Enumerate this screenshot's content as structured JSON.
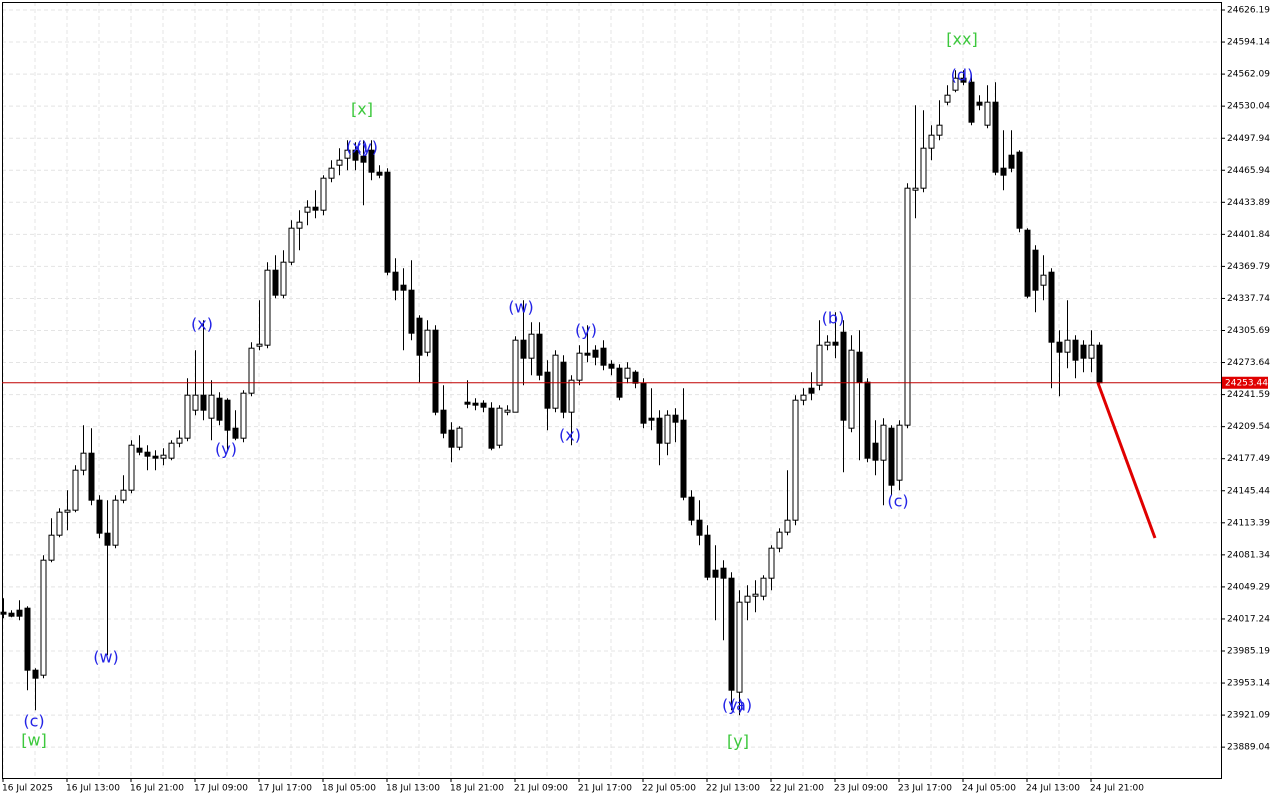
{
  "chart_data": {
    "type": "candlestick",
    "categories": [
      "16 Jul 2025",
      null,
      null,
      null,
      null,
      null,
      null,
      null,
      "16 Jul 13:00",
      null,
      null,
      null,
      null,
      null,
      null,
      null,
      "16 Jul 21:00",
      null,
      null,
      null,
      null,
      null,
      null,
      null,
      "17 Jul 09:00",
      null,
      null,
      null,
      null,
      null,
      null,
      null,
      "17 Jul 17:00",
      null,
      null,
      null,
      null,
      null,
      null,
      null,
      "18 Jul 05:00",
      null,
      null,
      null,
      null,
      null,
      null,
      null,
      "18 Jul 13:00",
      null,
      null,
      null,
      null,
      null,
      null,
      null,
      "18 Jul 21:00",
      null,
      null,
      null,
      null,
      null,
      null,
      null,
      "21 Jul 09:00",
      null,
      null,
      null,
      null,
      null,
      null,
      null,
      "21 Jul 17:00",
      null,
      null,
      null,
      null,
      null,
      null,
      null,
      "22 Jul 05:00",
      null,
      null,
      null,
      null,
      null,
      null,
      null,
      "22 Jul 13:00",
      null,
      null,
      null,
      null,
      null,
      null,
      null,
      "22 Jul 21:00",
      null,
      null,
      null,
      null,
      null,
      null,
      null,
      "23 Jul 09:00",
      null,
      null,
      null,
      null,
      null,
      null,
      null,
      "23 Jul 17:00",
      null,
      null,
      null,
      null,
      null,
      null,
      null,
      "24 Jul 05:00",
      null,
      null,
      null,
      null,
      null,
      null,
      null,
      "24 Jul 13:00",
      null,
      null,
      null,
      null,
      null,
      null,
      null,
      "24 Jul 21:00",
      null
    ],
    "open": [
      24024,
      24023,
      24026,
      24028,
      23966,
      23961,
      24076,
      24101,
      24124,
      24126,
      24166,
      24183,
      24136,
      24103,
      24091,
      24136,
      24146,
      24188,
      24184,
      24180,
      24178,
      24178,
      24193,
      24198,
      24226,
      24241,
      24218,
      24238,
      24236,
      24208,
      24198,
      24243,
      24290,
      24291,
      24366,
      24341,
      24374,
      24408,
      24424,
      24429,
      24426,
      24458,
      24471,
      24478,
      24486,
      24480,
      24486,
      24464,
      24464,
      24364,
      24351,
      24346,
      24318,
      24284,
      24306,
      24226,
      24206,
      24189,
      24234,
      24233,
      24233,
      24228,
      24191,
      24224,
      24224,
      24296,
      24278,
      24302,
      24264,
      24228,
      24274,
      24224,
      24256,
      24283,
      24286,
      24288,
      24272,
      24268,
      24258,
      24264,
      24253,
      24218,
      24218,
      24193,
      24221,
      24216,
      24139,
      24116,
      24101,
      24066,
      24068,
      24058,
      23944,
      24034,
      24040,
      24040,
      24058,
      24088,
      24104,
      24116,
      24236,
      24248,
      24251,
      24291,
      24294,
      24304,
      24208,
      24284,
      24254,
      24193,
      24176,
      24208,
      24156,
      24211,
      24446,
      24448,
      24488,
      24501,
      24534,
      24546,
      24558,
      24554,
      24534,
      24511,
      24534,
      24468,
      24481,
      24484,
      24406,
      24386,
      24351,
      24364,
      24294,
      24284,
      24296,
      24291,
      24278,
      24291
    ],
    "high": [
      24038,
      24026,
      24036,
      24030,
      23968,
      24081,
      24118,
      24128,
      24146,
      24171,
      24211,
      24208,
      24141,
      24136,
      24141,
      24161,
      24196,
      24201,
      24191,
      24186,
      24188,
      24196,
      24206,
      24258,
      24286,
      24316,
      24256,
      24244,
      24238,
      24226,
      24246,
      24294,
      24336,
      24374,
      24381,
      24386,
      24416,
      24426,
      24436,
      24446,
      24461,
      24476,
      24488,
      24496,
      24494,
      24496,
      24496,
      24471,
      24468,
      24378,
      24368,
      24376,
      24321,
      24316,
      24311,
      24251,
      24214,
      24210,
      24256,
      24238,
      24236,
      24234,
      24231,
      24231,
      24300,
      24336,
      24314,
      24314,
      24276,
      24286,
      24281,
      24261,
      24291,
      24311,
      24291,
      24296,
      24276,
      24272,
      24274,
      24266,
      24258,
      24248,
      24226,
      24226,
      24228,
      24248,
      24146,
      24136,
      24111,
      24091,
      24076,
      24064,
      24046,
      24051,
      24056,
      24061,
      24091,
      24108,
      24166,
      24241,
      24248,
      24264,
      24316,
      24301,
      24324,
      24316,
      24301,
      24306,
      24258,
      24216,
      24218,
      24211,
      24216,
      24453,
      24531,
      24526,
      24511,
      24536,
      24551,
      24566,
      24566,
      24561,
      24541,
      24551,
      24554,
      24506,
      24506,
      24486,
      24408,
      24391,
      24381,
      24368,
      24306,
      24336,
      24301,
      24296,
      24306,
      24294
    ],
    "low": [
      24018,
      24019,
      24016,
      23946,
      23926,
      23958,
      24074,
      24099,
      24106,
      24124,
      24161,
      24131,
      24098,
      23981,
      24088,
      24133,
      24143,
      24181,
      24166,
      24166,
      24171,
      24176,
      24189,
      24195,
      24221,
      24216,
      24196,
      24211,
      24186,
      24196,
      24194,
      24240,
      24286,
      24288,
      24338,
      24338,
      24371,
      24386,
      24411,
      24418,
      24421,
      24454,
      24461,
      24466,
      24466,
      24431,
      24456,
      24458,
      24361,
      24336,
      24286,
      24296,
      24254,
      24280,
      24221,
      24198,
      24174,
      24186,
      24228,
      24226,
      24224,
      24186,
      24188,
      24221,
      24224,
      24251,
      24261,
      24256,
      24206,
      24224,
      24218,
      24191,
      24251,
      24274,
      24271,
      24266,
      24261,
      24236,
      24253,
      24248,
      24208,
      24206,
      24171,
      24181,
      24194,
      24136,
      24111,
      24091,
      24056,
      24016,
      23996,
      23926,
      23921,
      24016,
      24024,
      24036,
      24046,
      24084,
      24101,
      24111,
      24231,
      24236,
      24246,
      24286,
      24278,
      24164,
      24204,
      24176,
      24174,
      24161,
      24131,
      24141,
      24146,
      24208,
      24418,
      24444,
      24476,
      24496,
      24531,
      24544,
      24551,
      24511,
      24526,
      24508,
      24461,
      24446,
      24464,
      24404,
      24338,
      24324,
      24336,
      24248,
      24240,
      24268,
      24258,
      24264,
      24264,
      24251
    ],
    "close": [
      24022,
      24020,
      24020,
      23966,
      23958,
      24076,
      24101,
      24124,
      24126,
      24166,
      24183,
      24136,
      24103,
      24091,
      24136,
      24146,
      24191,
      24184,
      24180,
      24178,
      24181,
      24193,
      24198,
      24241,
      24241,
      24226,
      24241,
      24216,
      24206,
      24198,
      24243,
      24288,
      24292,
      24366,
      24341,
      24374,
      24408,
      24414,
      24429,
      24426,
      24458,
      24468,
      24476,
      24486,
      24476,
      24474,
      24464,
      24461,
      24364,
      24346,
      24346,
      24303,
      24281,
      24306,
      24224,
      24203,
      24189,
      24208,
      24232,
      24231,
      24229,
      24188,
      24228,
      24226,
      24296,
      24278,
      24302,
      24261,
      24228,
      24281,
      24224,
      24256,
      24283,
      24281,
      24279,
      24271,
      24268,
      24239,
      24268,
      24253,
      24213,
      24216,
      24193,
      24221,
      24214,
      24139,
      24116,
      24101,
      24059,
      24059,
      24058,
      23946,
      24034,
      24040,
      24042,
      24058,
      24088,
      24104,
      24116,
      24236,
      24241,
      24243,
      24291,
      24294,
      24291,
      24216,
      24286,
      24254,
      24178,
      24176,
      24211,
      24151,
      24211,
      24448,
      24448,
      24488,
      24501,
      24511,
      24541,
      24558,
      24554,
      24514,
      24531,
      24534,
      24464,
      24461,
      24468,
      24408,
      24340,
      24346,
      24361,
      24294,
      24284,
      24296,
      24276,
      24278,
      24291,
      24253.44
    ],
    "current_price": 24253.44,
    "ylim": [
      23858.19,
      24634.19
    ],
    "yticks": [
      24626.19,
      24594.14,
      24562.09,
      24530.04,
      24497.94,
      24465.94,
      24433.89,
      24401.84,
      24369.79,
      24337.74,
      24305.69,
      24273.64,
      24241.59,
      24209.54,
      24177.49,
      24145.44,
      24113.39,
      24081.34,
      24049.29,
      24017.24,
      23985.19,
      23953.14,
      23921.09,
      23889.04
    ],
    "grid": true,
    "minor_wave_labels": [
      "(c)",
      "(w)",
      "(x)",
      "(y)",
      "(x)",
      "(y)",
      "(w)",
      "(x)",
      "(y)",
      "(y)",
      "(a)",
      "(b)",
      "(c)",
      "(d)"
    ],
    "major_wave_labels": [
      "[w]",
      "[x]",
      "[y]",
      "[xx]"
    ]
  }
}
